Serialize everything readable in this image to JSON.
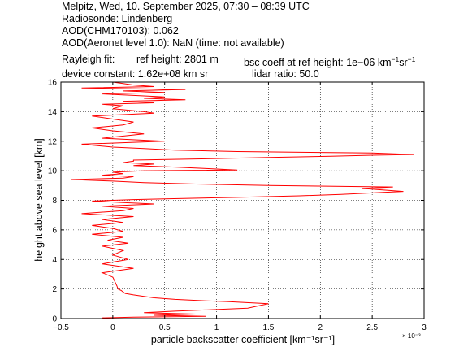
{
  "header": {
    "line1": "Melpitz, Wed, 10. September 2025, 07:30 – 08:39 UTC",
    "line2": "Radiosonde: Lindenberg",
    "line3": "AOD(CHM170103): 0.062",
    "line4": "AOD(Aeronet level 1.0): NaN   (time: not available)",
    "rayleigh_label": "Rayleigh fit:",
    "ref_height": "ref height: 2801 m",
    "bsc_coeff_prefix": "bsc coeff at ref height: 1e−06 km",
    "unit_exp1": "−1",
    "unit_sr": "sr",
    "unit_exp2": "−1",
    "device_constant": "device constant: 1.62e+08 km sr",
    "lidar_ratio": "lidar ratio: 50.0"
  },
  "colors": {
    "profile": "#ff0000",
    "grid": "#000000",
    "background": "#ffffff"
  },
  "chart_data": {
    "type": "line",
    "xlabel": "particle backscatter coefficient [km⁻¹sr⁻¹]",
    "ylabel": "height above sea level [km]",
    "x_multiplier": "× 10⁻³",
    "xlim": [
      -0.0005,
      0.003
    ],
    "ylim": [
      0,
      16
    ],
    "x_ticks": [
      -0.0005,
      0,
      0.0005,
      0.001,
      0.0015,
      0.002,
      0.0025,
      0.003
    ],
    "x_tick_labels": [
      "−0.5",
      "0",
      "0.5",
      "1",
      "1.5",
      "2",
      "2.5",
      "3"
    ],
    "y_ticks": [
      0,
      2,
      4,
      6,
      8,
      10,
      12,
      14,
      16
    ],
    "y_tick_labels": [
      "0",
      "2",
      "4",
      "6",
      "8",
      "10",
      "12",
      "14",
      "16"
    ],
    "grid": true,
    "series": [
      {
        "x": [
          -0.0001,
          0.0002,
          0.0009,
          0.0004,
          0.0008,
          0.0003,
          0.0006,
          0.0013,
          0.0015,
          0.0011,
          0.0009,
          0.0006,
          0.0004,
          0.0003,
          0.0002,
          0.00012,
          0.0001,
          8e-05,
          5e-05,
          4e-05,
          2e-05,
          0.0,
          -0.0001,
          0.0002,
          -0.0001,
          0.00015,
          0.0,
          0.0001,
          -0.0001,
          0.00015,
          -5e-05,
          0.0001,
          -0.0002,
          0.0001,
          0.0,
          -0.0002,
          0.0001,
          -0.0001,
          0.0002,
          -0.0003,
          0.0001,
          0.0002,
          -0.0001,
          0.0004,
          0.0001,
          -0.0002,
          0.0,
          0.0002,
          0.0005,
          0.0012,
          0.0018,
          0.0022,
          0.0025,
          0.0028,
          0.0026,
          0.0024,
          0.0027,
          0.0015,
          0.0008,
          0.0003,
          0.0,
          -0.0004,
          0.0001,
          0.0002,
          -0.0001,
          0.0001,
          0.0,
          0.0003,
          0.0012,
          0.0009,
          0.0006,
          0.0002,
          0.0004,
          0.0001,
          0.0002,
          0.0002,
          0.0008,
          0.0015,
          0.0021,
          0.0025,
          0.0029,
          0.0025,
          0.0012,
          0.0006,
          0.0003,
          0.0,
          -0.0003,
          0.0005,
          -0.0001,
          0.0003,
          0.0,
          -0.0002,
          0.0001,
          0.0002,
          0.0,
          -0.0002,
          0.0004,
          0.0003,
          0.0,
          0.0001,
          -0.0001,
          0.0004,
          0.0001,
          0.0007,
          0.0003,
          0.0005,
          0.0002,
          -0.0001,
          0.0005,
          0.0001,
          0.0007,
          -0.0003,
          0.0004,
          0.0002,
          0.0001,
          0.0
        ],
        "y": [
          0.05,
          0.1,
          0.15,
          0.22,
          0.3,
          0.4,
          0.5,
          0.7,
          1.0,
          1.15,
          1.2,
          1.3,
          1.4,
          1.5,
          1.6,
          1.7,
          1.8,
          1.9,
          2.0,
          2.2,
          2.5,
          2.8,
          3.1,
          3.4,
          3.7,
          4.0,
          4.3,
          4.6,
          4.9,
          5.1,
          5.3,
          5.5,
          5.7,
          5.9,
          6.1,
          6.3,
          6.5,
          6.7,
          6.9,
          7.1,
          7.3,
          7.45,
          7.6,
          7.75,
          7.85,
          7.95,
          8.0,
          8.05,
          8.1,
          8.2,
          8.3,
          8.4,
          8.5,
          8.6,
          8.7,
          8.8,
          8.9,
          9.0,
          9.1,
          9.2,
          9.3,
          9.4,
          9.5,
          9.6,
          9.7,
          9.8,
          9.9,
          10.0,
          10.05,
          10.15,
          10.25,
          10.35,
          10.45,
          10.55,
          10.65,
          10.72,
          10.8,
          10.9,
          10.98,
          11.05,
          11.1,
          11.2,
          11.3,
          11.4,
          11.5,
          11.6,
          11.8,
          12.0,
          12.2,
          12.5,
          12.7,
          12.9,
          13.1,
          13.3,
          13.5,
          13.7,
          13.9,
          14.0,
          14.2,
          14.4,
          14.5,
          14.6,
          14.7,
          14.8,
          14.9,
          15.0,
          15.1,
          15.2,
          15.3,
          15.4,
          15.5,
          15.6,
          15.7,
          15.8,
          15.9,
          16.0
        ]
      }
    ]
  }
}
